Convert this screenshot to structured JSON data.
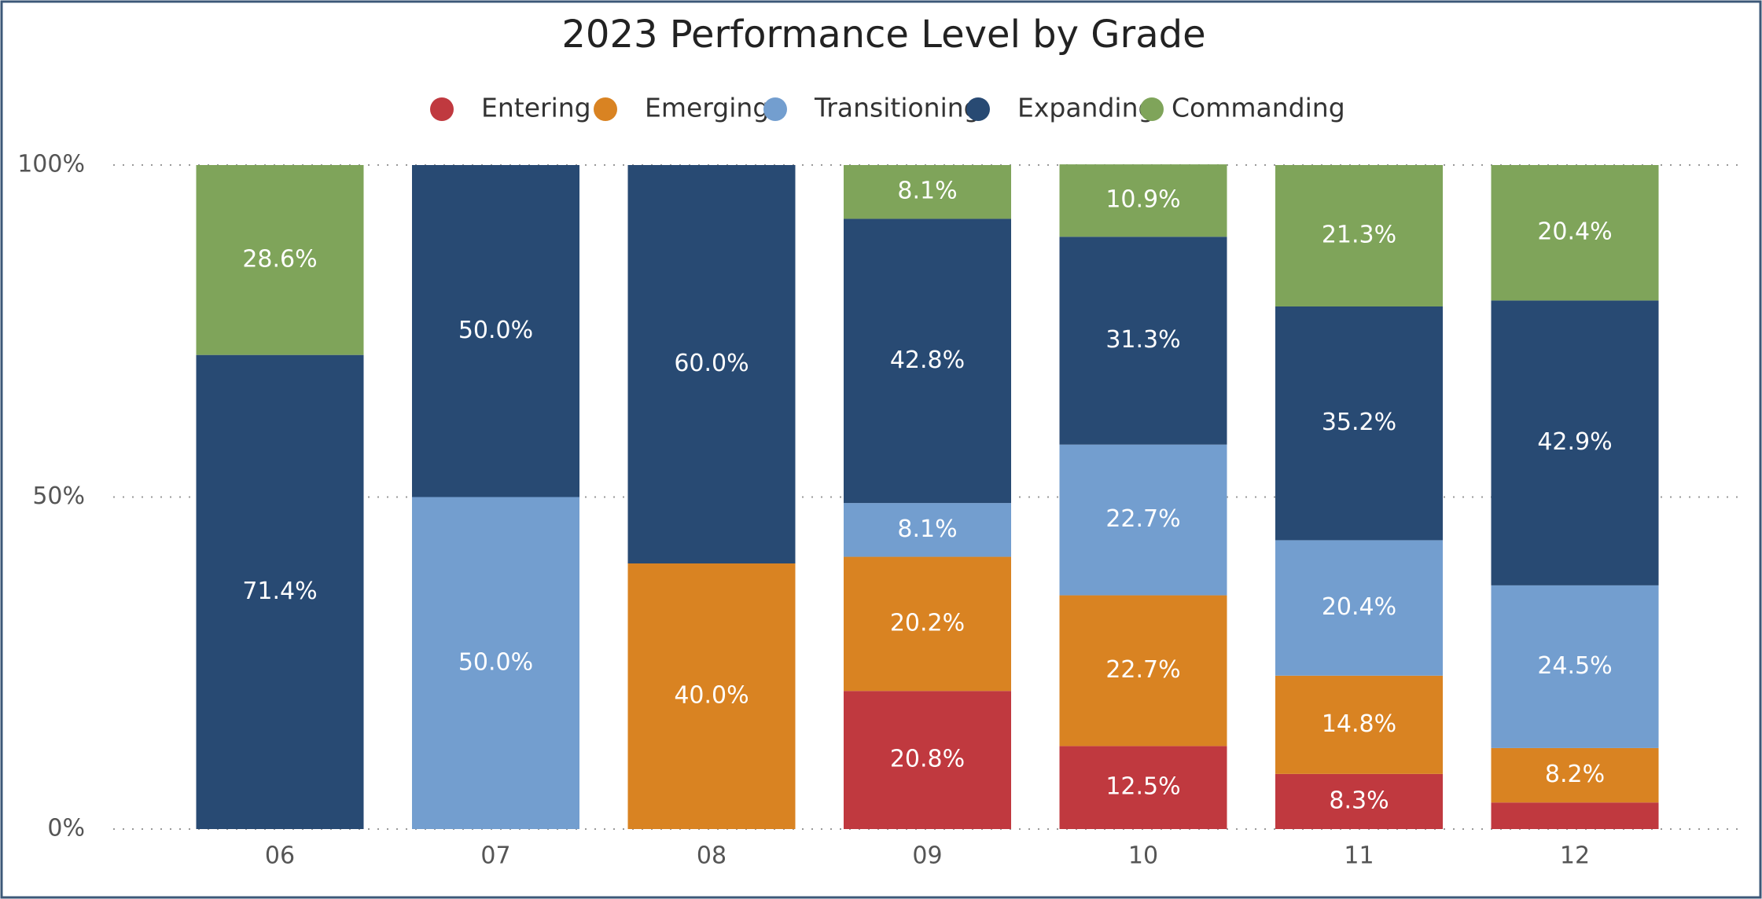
{
  "chart_data": {
    "type": "stacked_bar",
    "title": "2023 Performance Level by Grade",
    "categories": [
      "06",
      "07",
      "08",
      "09",
      "10",
      "11",
      "12"
    ],
    "series": [
      {
        "name": "Entering",
        "color": "#c0393f",
        "values": [
          null,
          null,
          null,
          20.8,
          12.5,
          8.3,
          4.0
        ],
        "value_labels": [
          null,
          null,
          null,
          "20.8%",
          "12.5%",
          "8.3%",
          null
        ]
      },
      {
        "name": "Emerging",
        "color": "#d98322",
        "values": [
          null,
          null,
          40,
          20.2,
          22.7,
          14.8,
          8.2
        ],
        "value_labels": [
          null,
          null,
          "40.0%",
          "20.2%",
          "22.7%",
          "14.8%",
          "8.2%"
        ]
      },
      {
        "name": "Transitioning",
        "color": "#739ecf",
        "values": [
          null,
          50,
          null,
          8.1,
          22.7,
          20.4,
          24.5
        ],
        "value_labels": [
          null,
          "50.0%",
          null,
          "8.1%",
          "22.7%",
          "20.4%",
          "24.5%"
        ]
      },
      {
        "name": "Expanding",
        "color": "#284a73",
        "values": [
          71.4,
          50,
          60,
          42.8,
          31.3,
          35.2,
          42.9
        ],
        "value_labels": [
          "71.4%",
          "50.0%",
          "60.0%",
          "42.8%",
          "31.3%",
          "35.2%",
          "42.9%"
        ]
      },
      {
        "name": "Commanding",
        "color": "#7fa45a",
        "values": [
          28.6,
          null,
          null,
          8.1,
          10.9,
          21.3,
          20.4
        ],
        "value_labels": [
          "28.6%",
          null,
          null,
          "8.1%",
          "10.9%",
          "21.3%",
          "20.4%"
        ]
      }
    ],
    "ylim": [
      0,
      100
    ],
    "yticks": [
      {
        "value": 0,
        "label": "0%"
      },
      {
        "value": 50,
        "label": "50%"
      },
      {
        "value": 100,
        "label": "100%"
      }
    ],
    "grid": true
  }
}
